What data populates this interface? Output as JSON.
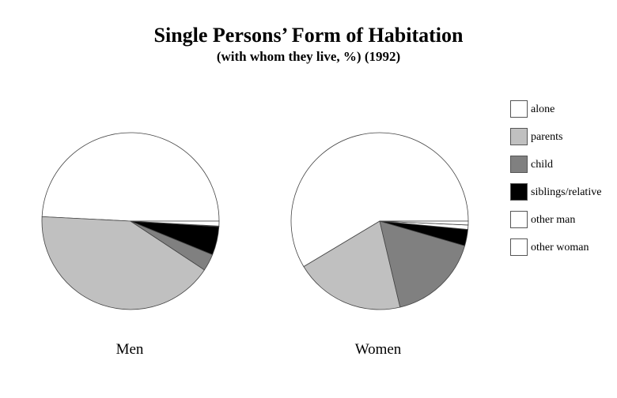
{
  "chart_data": {
    "type": "pie",
    "title": "Single Persons’ Form of Habitation",
    "subtitle": "(with whom they live, %) (1992)",
    "legend_position": "right",
    "categories": [
      "alone",
      "parents",
      "child",
      "siblings/relative",
      "other man",
      "other woman"
    ],
    "colors": [
      "#ffffff",
      "#c0c0c0",
      "#808080",
      "#000000",
      "#ffffff",
      "#ffffff"
    ],
    "pies": [
      {
        "name": "Men",
        "values": [
          49.2,
          41.5,
          3.1,
          5.2,
          0.1,
          0.9
        ]
      },
      {
        "name": "Women",
        "values": [
          58.6,
          20.1,
          16.8,
          3.0,
          0.8,
          0.7
        ]
      }
    ]
  }
}
